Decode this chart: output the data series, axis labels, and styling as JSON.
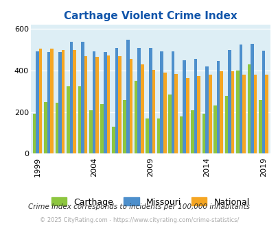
{
  "title": "Carthage Violent Crime Index",
  "years": [
    1999,
    2000,
    2001,
    2002,
    2003,
    2004,
    2005,
    2006,
    2007,
    2008,
    2009,
    2010,
    2011,
    2012,
    2013,
    2014,
    2015,
    2016,
    2017,
    2018,
    2019
  ],
  "carthage": [
    192,
    248,
    245,
    325,
    325,
    210,
    238,
    130,
    258,
    350,
    170,
    170,
    285,
    180,
    210,
    193,
    232,
    278,
    400,
    430,
    258
  ],
  "missouri": [
    492,
    490,
    490,
    540,
    540,
    492,
    490,
    508,
    548,
    508,
    510,
    492,
    492,
    450,
    455,
    420,
    445,
    498,
    525,
    530,
    495
  ],
  "national": [
    505,
    505,
    498,
    498,
    470,
    465,
    472,
    470,
    455,
    430,
    405,
    390,
    385,
    365,
    374,
    380,
    398,
    398,
    379,
    379,
    379
  ],
  "colors": {
    "carthage": "#8dc63f",
    "missouri": "#4d8fcc",
    "national": "#f5a623"
  },
  "xtick_years": [
    1999,
    2004,
    2009,
    2014,
    2019
  ],
  "ylim": [
    0,
    620
  ],
  "yticks": [
    0,
    200,
    400,
    600
  ],
  "bg_color": "#ddeef5",
  "title_color": "#1155aa",
  "footer_text": "Crime Index corresponds to incidents per 100,000 inhabitants",
  "copyright_text": "© 2025 CityRating.com - https://www.cityrating.com/crime-statistics/",
  "legend_labels": [
    "Carthage",
    "Missouri",
    "National"
  ]
}
